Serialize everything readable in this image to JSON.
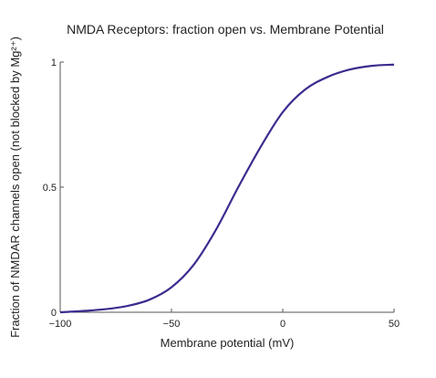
{
  "chart_data": {
    "type": "line",
    "title": "NMDA Receptors: fraction open vs. Membrane Potential",
    "xlabel": "Membrane potential (mV)",
    "ylabel": "Fraction of NMDAR channels open (not blocked by Mg²⁺)",
    "xlim": [
      -100,
      50
    ],
    "ylim": [
      0,
      1
    ],
    "grid": false,
    "x_ticks": [
      -100,
      -50,
      0,
      50
    ],
    "x_tick_labels": [
      "−100",
      "−50",
      "0",
      "50"
    ],
    "y_ticks": [
      0,
      0.5,
      1
    ],
    "y_tick_labels": [
      "0",
      "0.5",
      "1"
    ],
    "series": [
      {
        "color": "#3a2d8f",
        "x": [
          -100,
          -90,
          -80,
          -70,
          -60,
          -50,
          -40,
          -30,
          -20,
          -10,
          0,
          10,
          20,
          30,
          40,
          50
        ],
        "y": [
          0.0,
          0.005,
          0.012,
          0.025,
          0.05,
          0.1,
          0.19,
          0.33,
          0.5,
          0.66,
          0.8,
          0.89,
          0.94,
          0.97,
          0.985,
          0.99
        ]
      }
    ]
  }
}
